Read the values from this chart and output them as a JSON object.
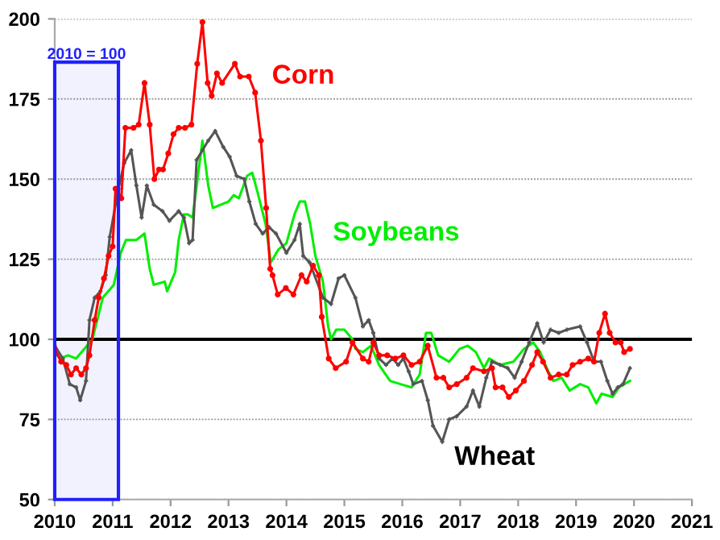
{
  "chart_data": {
    "type": "line",
    "xlim": [
      2010,
      2021
    ],
    "xticks": [
      2010,
      2011,
      2012,
      2013,
      2014,
      2015,
      2016,
      2017,
      2018,
      2019,
      2020,
      2021
    ],
    "ylim": [
      50,
      200
    ],
    "yticks": [
      50,
      75,
      100,
      125,
      150,
      175,
      200
    ],
    "grid": "y",
    "legend": false,
    "ref_lines": [
      {
        "axis": "y",
        "value": 100,
        "color": "#000000",
        "line_style": "solid"
      }
    ],
    "bands": [
      {
        "axis": "x",
        "from": 2010,
        "to": 2011.1,
        "label": "2010 = 100",
        "color": "#2020ff"
      }
    ],
    "series": [
      {
        "name": "Corn",
        "color": "#ff0000",
        "marker": "circle",
        "x": [
          2010,
          2010.11,
          2010.2,
          2010.28,
          2010.37,
          2010.46,
          2010.54,
          2010.6,
          2010.69,
          2010.76,
          2010.85,
          2010.93,
          2011.0,
          2011.05,
          2011.15,
          2011.22,
          2011.36,
          2011.45,
          2011.55,
          2011.64,
          2011.72,
          2011.8,
          2011.87,
          2011.96,
          2012.05,
          2012.14,
          2012.25,
          2012.36,
          2012.46,
          2012.55,
          2012.64,
          2012.71,
          2012.8,
          2012.89,
          2013.11,
          2013.2,
          2013.35,
          2013.46,
          2013.56,
          2013.65,
          2013.72,
          2013.76,
          2013.85,
          2013.99,
          2014.12,
          2014.26,
          2014.35,
          2014.46,
          2014.56,
          2014.61,
          2014.73,
          2014.85,
          2015.03,
          2015.14,
          2015.32,
          2015.42,
          2015.5,
          2015.6,
          2015.74,
          2015.88,
          2016.02,
          2016.16,
          2016.3,
          2016.44,
          2016.59,
          2016.71,
          2016.81,
          2016.94,
          2017.11,
          2017.22,
          2017.41,
          2017.55,
          2017.61,
          2017.73,
          2017.84,
          2017.96,
          2018.1,
          2018.24,
          2018.33,
          2018.43,
          2018.56,
          2018.7,
          2018.84,
          2018.94,
          2019.07,
          2019.21,
          2019.31,
          2019.4,
          2019.5,
          2019.58,
          2019.68,
          2019.77,
          2019.83,
          2019.93
        ],
        "values": [
          97,
          93,
          92,
          89,
          91,
          89,
          91,
          95,
          106,
          113,
          119,
          126,
          129,
          147,
          144,
          166,
          166,
          167,
          180,
          167,
          150,
          153,
          153,
          158,
          164,
          166,
          166,
          167,
          186,
          199,
          180,
          176,
          183,
          180,
          186,
          182,
          182,
          177,
          162,
          141,
          122,
          120,
          114,
          116,
          114,
          120,
          118,
          123,
          120,
          107,
          94,
          91,
          93,
          99,
          94,
          93,
          99,
          95,
          95,
          94,
          95,
          92,
          93,
          98,
          88,
          88,
          85,
          86,
          88,
          91,
          90,
          91,
          85,
          85,
          82,
          84,
          87,
          92,
          96,
          93,
          88,
          89,
          89,
          92,
          93,
          94,
          93,
          102,
          108,
          102,
          99,
          99,
          96,
          97
        ]
      },
      {
        "name": "Soybeans",
        "color": "#00ee00",
        "marker": "none",
        "x": [
          2010,
          2010.09,
          2010.23,
          2010.37,
          2010.51,
          2010.65,
          2010.83,
          2011.02,
          2011.14,
          2011.23,
          2011.41,
          2011.55,
          2011.64,
          2011.71,
          2011.9,
          2011.94,
          2012.08,
          2012.14,
          2012.23,
          2012.3,
          2012.38,
          2012.55,
          2012.65,
          2012.73,
          2013.0,
          2013.09,
          2013.18,
          2013.32,
          2013.41,
          2013.5,
          2013.64,
          2013.73,
          2013.86,
          2014.0,
          2014.14,
          2014.23,
          2014.32,
          2014.41,
          2014.5,
          2014.63,
          2014.72,
          2014.77,
          2014.86,
          2015.0,
          2015.14,
          2015.19,
          2015.32,
          2015.46,
          2015.6,
          2015.79,
          2015.97,
          2016.16,
          2016.3,
          2016.41,
          2016.5,
          2016.62,
          2016.81,
          2016.99,
          2017.13,
          2017.27,
          2017.41,
          2017.5,
          2017.69,
          2017.92,
          2018.1,
          2018.26,
          2018.38,
          2018.52,
          2018.61,
          2018.75,
          2018.89,
          2019.07,
          2019.21,
          2019.35,
          2019.44,
          2019.63,
          2019.74,
          2019.83,
          2019.93
        ],
        "values": [
          96,
          94,
          95,
          94,
          97,
          100,
          113,
          117,
          127,
          131,
          131,
          133,
          122,
          117,
          118,
          115,
          121,
          131,
          139,
          139,
          138,
          162,
          148,
          141,
          143,
          145,
          144,
          151,
          152,
          146,
          136,
          124,
          128,
          130,
          139,
          143,
          143,
          136,
          126,
          118,
          104,
          100,
          103,
          103,
          100,
          97,
          96,
          98,
          92,
          87,
          86,
          85,
          89,
          102,
          102,
          95,
          93,
          97,
          98,
          96,
          91,
          94,
          92,
          93,
          97,
          99,
          96,
          90,
          87,
          88,
          84,
          86,
          85,
          80,
          83,
          82,
          85,
          86,
          87
        ]
      },
      {
        "name": "Wheat",
        "color": "#555555",
        "marker": "cross",
        "x": [
          2010,
          2010.14,
          2010.26,
          2010.37,
          2010.44,
          2010.54,
          2010.6,
          2010.69,
          2010.79,
          2010.88,
          2010.95,
          2011.1,
          2011.2,
          2011.32,
          2011.41,
          2011.5,
          2011.59,
          2011.71,
          2011.86,
          2011.98,
          2012.14,
          2012.23,
          2012.32,
          2012.38,
          2012.45,
          2012.55,
          2012.65,
          2012.77,
          2012.91,
          2013.02,
          2013.14,
          2013.27,
          2013.36,
          2013.47,
          2013.59,
          2013.7,
          2013.82,
          2014.0,
          2014.14,
          2014.23,
          2014.29,
          2014.4,
          2014.63,
          2014.77,
          2014.9,
          2015.0,
          2015.19,
          2015.32,
          2015.42,
          2015.5,
          2015.6,
          2015.72,
          2015.83,
          2015.93,
          2016.02,
          2016.11,
          2016.19,
          2016.34,
          2016.44,
          2016.53,
          2016.69,
          2016.81,
          2016.94,
          2017.11,
          2017.22,
          2017.33,
          2017.45,
          2017.55,
          2017.69,
          2017.82,
          2017.94,
          2018.06,
          2018.19,
          2018.33,
          2018.44,
          2018.56,
          2018.7,
          2018.84,
          2019.07,
          2019.19,
          2019.31,
          2019.43,
          2019.54,
          2019.63,
          2019.72,
          2019.81,
          2019.93
        ],
        "values": [
          98,
          94,
          86,
          85,
          81,
          87,
          106,
          113,
          115,
          120,
          132,
          147,
          155,
          159,
          148,
          138,
          148,
          142,
          140,
          137,
          140,
          138,
          130,
          131,
          156,
          159,
          162,
          165,
          160,
          157,
          151,
          150,
          143,
          136,
          133,
          135,
          133,
          127,
          131,
          136,
          126,
          124,
          113,
          111,
          119,
          120,
          113,
          104,
          106,
          102,
          94,
          92,
          94,
          92,
          94,
          90,
          86,
          87,
          81,
          73,
          68,
          75,
          76,
          79,
          84,
          79,
          88,
          93,
          92,
          91,
          88,
          93,
          99,
          105,
          99,
          103,
          102,
          103,
          104,
          99,
          93,
          93,
          87,
          83,
          85,
          86,
          91
        ]
      }
    ]
  }
}
